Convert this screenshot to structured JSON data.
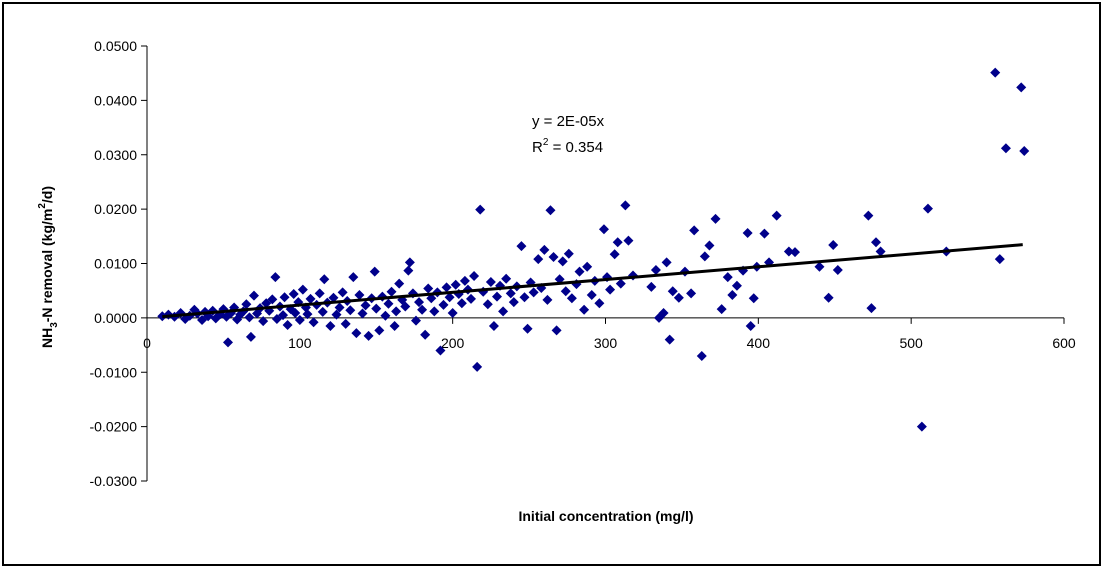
{
  "chart_data": {
    "type": "scatter",
    "xlabel": "Initial concentration (mg/l)",
    "ylabel": {
      "part1": "NH",
      "sub": "3",
      "part2": "-N removal (kg/m",
      "sup": "2",
      "part3": "/d)"
    },
    "xlim": [
      0,
      600
    ],
    "ylim": [
      -0.03,
      0.05
    ],
    "x_ticks": [
      0,
      100,
      200,
      300,
      400,
      500,
      600
    ],
    "x_tick_labels": [
      "0",
      "100",
      "200",
      "300",
      "400",
      "500",
      "600"
    ],
    "y_ticks": [
      0.05,
      0.04,
      0.03,
      0.02,
      0.01,
      0.0,
      -0.01,
      -0.02,
      -0.03
    ],
    "y_tick_labels": [
      "0.0500",
      "0.0400",
      "0.0300",
      "0.0200",
      "0.0100",
      "0.0000",
      "-0.0100",
      "-0.0200",
      "-0.0300"
    ],
    "grid": false,
    "marker_color": "#00008B",
    "trendline": {
      "slope": 2.35e-05,
      "x_range": [
        10,
        573
      ],
      "color": "#000000",
      "equation": "y = 2E-05x",
      "r2_prefix": "R",
      "r2_sup": "2",
      "r2_suffix": " = 0.354"
    },
    "series": [
      {
        "points": [
          [
            10,
            0.0003
          ],
          [
            14,
            0.0006
          ],
          [
            18,
            0.0002
          ],
          [
            22,
            0.0009
          ],
          [
            25,
            -0.0002
          ],
          [
            28,
            0.0004
          ],
          [
            31,
            0.0015
          ],
          [
            33,
            0.0008
          ],
          [
            36,
            -0.0004
          ],
          [
            38,
            0.0011
          ],
          [
            40,
            0.0003
          ],
          [
            43,
            0.0013
          ],
          [
            45,
            -0.0001
          ],
          [
            48,
            0.0007
          ],
          [
            50,
            0.0016
          ],
          [
            52,
            0.0002
          ],
          [
            53,
            -0.0045
          ],
          [
            55,
            0.0009
          ],
          [
            57,
            0.0019
          ],
          [
            59,
            -0.0003
          ],
          [
            61,
            0.0006
          ],
          [
            63,
            0.0012
          ],
          [
            65,
            0.0025
          ],
          [
            67,
            0.0001
          ],
          [
            68,
            -0.0035
          ],
          [
            70,
            0.0041
          ],
          [
            72,
            0.0008
          ],
          [
            74,
            0.0018
          ],
          [
            76,
            -0.0006
          ],
          [
            78,
            0.0027
          ],
          [
            80,
            0.0013
          ],
          [
            82,
            0.0034
          ],
          [
            84,
            0.0075
          ],
          [
            85,
            -0.0002
          ],
          [
            87,
            0.0021
          ],
          [
            89,
            0.0005
          ],
          [
            90,
            0.0038
          ],
          [
            92,
            -0.0013
          ],
          [
            94,
            0.0016
          ],
          [
            96,
            0.0044
          ],
          [
            97,
            0.0009
          ],
          [
            99,
            0.0029
          ],
          [
            100,
            -0.0004
          ],
          [
            102,
            0.0052
          ],
          [
            104,
            0.0019
          ],
          [
            105,
            0.0007
          ],
          [
            107,
            0.0035
          ],
          [
            109,
            -0.0008
          ],
          [
            111,
            0.0024
          ],
          [
            113,
            0.0045
          ],
          [
            115,
            0.0011
          ],
          [
            116,
            0.0071
          ],
          [
            118,
            0.0028
          ],
          [
            120,
            -0.0015
          ],
          [
            122,
            0.0037
          ],
          [
            124,
            0.0006
          ],
          [
            126,
            0.0019
          ],
          [
            128,
            0.0047
          ],
          [
            130,
            -0.0011
          ],
          [
            131,
            0.0031
          ],
          [
            133,
            0.0014
          ],
          [
            135,
            0.0075
          ],
          [
            137,
            -0.0028
          ],
          [
            139,
            0.0042
          ],
          [
            141,
            0.0008
          ],
          [
            143,
            0.0023
          ],
          [
            145,
            -0.0033
          ],
          [
            147,
            0.0036
          ],
          [
            149,
            0.0085
          ],
          [
            150,
            0.0017
          ],
          [
            152,
            -0.0023
          ],
          [
            154,
            0.0039
          ],
          [
            156,
            0.0004
          ],
          [
            158,
            0.0026
          ],
          [
            160,
            0.0048
          ],
          [
            162,
            -0.0015
          ],
          [
            163,
            0.0012
          ],
          [
            165,
            0.0063
          ],
          [
            167,
            0.0033
          ],
          [
            169,
            0.0021
          ],
          [
            171,
            0.0087
          ],
          [
            172,
            0.0102
          ],
          [
            174,
            0.0045
          ],
          [
            176,
            -0.0005
          ],
          [
            178,
            0.0029
          ],
          [
            180,
            0.0015
          ],
          [
            182,
            -0.0031
          ],
          [
            184,
            0.0054
          ],
          [
            186,
            0.0036
          ],
          [
            188,
            0.0012
          ],
          [
            190,
            0.0047
          ],
          [
            192,
            -0.006
          ],
          [
            194,
            0.0024
          ],
          [
            196,
            0.0056
          ],
          [
            198,
            0.0038
          ],
          [
            200,
            0.0009
          ],
          [
            202,
            0.0061
          ],
          [
            204,
            0.0044
          ],
          [
            206,
            0.0027
          ],
          [
            208,
            0.0068
          ],
          [
            210,
            0.0052
          ],
          [
            212,
            0.0035
          ],
          [
            214,
            0.0077
          ],
          [
            216,
            -0.009
          ],
          [
            218,
            0.0199
          ],
          [
            220,
            0.0048
          ],
          [
            223,
            0.0025
          ],
          [
            225,
            0.0066
          ],
          [
            227,
            -0.0015
          ],
          [
            229,
            0.0039
          ],
          [
            231,
            0.0059
          ],
          [
            233,
            0.0012
          ],
          [
            235,
            0.0072
          ],
          [
            238,
            0.0045
          ],
          [
            240,
            0.0029
          ],
          [
            242,
            0.0058
          ],
          [
            245,
            0.0132
          ],
          [
            247,
            0.0038
          ],
          [
            249,
            -0.002
          ],
          [
            251,
            0.0065
          ],
          [
            253,
            0.0047
          ],
          [
            256,
            0.0108
          ],
          [
            258,
            0.0055
          ],
          [
            260,
            0.0125
          ],
          [
            262,
            0.0033
          ],
          [
            264,
            0.0198
          ],
          [
            266,
            0.0112
          ],
          [
            268,
            -0.0023
          ],
          [
            270,
            0.0071
          ],
          [
            272,
            0.0104
          ],
          [
            274,
            0.0049
          ],
          [
            276,
            0.0118
          ],
          [
            278,
            0.0036
          ],
          [
            281,
            0.0062
          ],
          [
            283,
            0.0085
          ],
          [
            286,
            0.0015
          ],
          [
            288,
            0.0094
          ],
          [
            291,
            0.0042
          ],
          [
            293,
            0.0068
          ],
          [
            296,
            0.0027
          ],
          [
            299,
            0.0163
          ],
          [
            301,
            0.0075
          ],
          [
            303,
            0.0052
          ],
          [
            306,
            0.0117
          ],
          [
            308,
            0.0139
          ],
          [
            310,
            0.0063
          ],
          [
            313,
            0.0207
          ],
          [
            315,
            0.0142
          ],
          [
            318,
            0.0078
          ],
          [
            330,
            0.0057
          ],
          [
            333,
            0.0088
          ],
          [
            335,
            0.0
          ],
          [
            338,
            0.0009
          ],
          [
            340,
            0.0102
          ],
          [
            342,
            -0.004
          ],
          [
            344,
            0.0049
          ],
          [
            348,
            0.0037
          ],
          [
            352,
            0.0085
          ],
          [
            356,
            0.0045
          ],
          [
            358,
            0.0161
          ],
          [
            363,
            -0.007
          ],
          [
            365,
            0.0113
          ],
          [
            368,
            0.0133
          ],
          [
            372,
            0.0182
          ],
          [
            376,
            0.0016
          ],
          [
            380,
            0.0075
          ],
          [
            383,
            0.0042
          ],
          [
            386,
            0.0059
          ],
          [
            390,
            0.0087
          ],
          [
            393,
            0.0156
          ],
          [
            395,
            -0.0015
          ],
          [
            397,
            0.0036
          ],
          [
            399,
            0.0094
          ],
          [
            404,
            0.0155
          ],
          [
            407,
            0.0102
          ],
          [
            412,
            0.0188
          ],
          [
            420,
            0.0122
          ],
          [
            424,
            0.0121
          ],
          [
            440,
            0.0094
          ],
          [
            446,
            0.0037
          ],
          [
            449,
            0.0134
          ],
          [
            452,
            0.0088
          ],
          [
            472,
            0.0188
          ],
          [
            474,
            0.0018
          ],
          [
            477,
            0.0139
          ],
          [
            480,
            0.0122
          ],
          [
            507,
            -0.02
          ],
          [
            511,
            0.0201
          ],
          [
            523,
            0.0122
          ],
          [
            555,
            0.0451
          ],
          [
            558,
            0.0108
          ],
          [
            562,
            0.0312
          ],
          [
            572,
            0.0424
          ],
          [
            574,
            0.0307
          ]
        ]
      }
    ]
  }
}
